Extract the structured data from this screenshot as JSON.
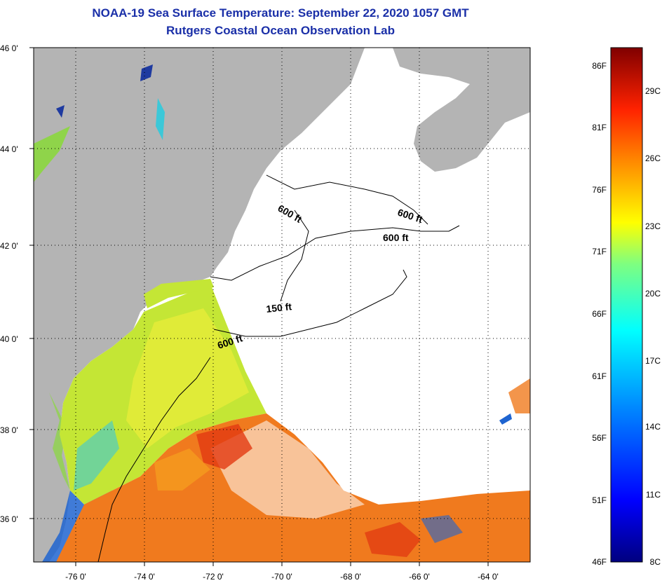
{
  "title": {
    "line1": "NOAA-19 Sea Surface Temperature:  September 22, 2020 1057 GMT",
    "line2": "Rutgers Coastal Ocean Observation Lab"
  },
  "lat_labels": [
    "46 0'",
    "44 0'",
    "42 0'",
    "40 0'",
    "38 0'",
    "36 0'"
  ],
  "lon_labels": [
    "-76 0'",
    "-74 0'",
    "-72 0'",
    "-70 0'",
    "-68 0'",
    "-66 0'",
    "-64 0'"
  ],
  "depth_labels": [
    "600 ft",
    "600 ft",
    "600 ft",
    "150 ft",
    "600 ft"
  ],
  "colorbar": {
    "fahrenheit": [
      "86F",
      "81F",
      "76F",
      "71F",
      "66F",
      "61F",
      "56F",
      "51F",
      "46F"
    ],
    "celsius": [
      "29C",
      "26C",
      "23C",
      "20C",
      "17C",
      "14C",
      "11C",
      "8C"
    ]
  },
  "colors": {
    "title": "#1a2fa8",
    "land": "#b4b4b4",
    "cloud": "#ffffff"
  }
}
